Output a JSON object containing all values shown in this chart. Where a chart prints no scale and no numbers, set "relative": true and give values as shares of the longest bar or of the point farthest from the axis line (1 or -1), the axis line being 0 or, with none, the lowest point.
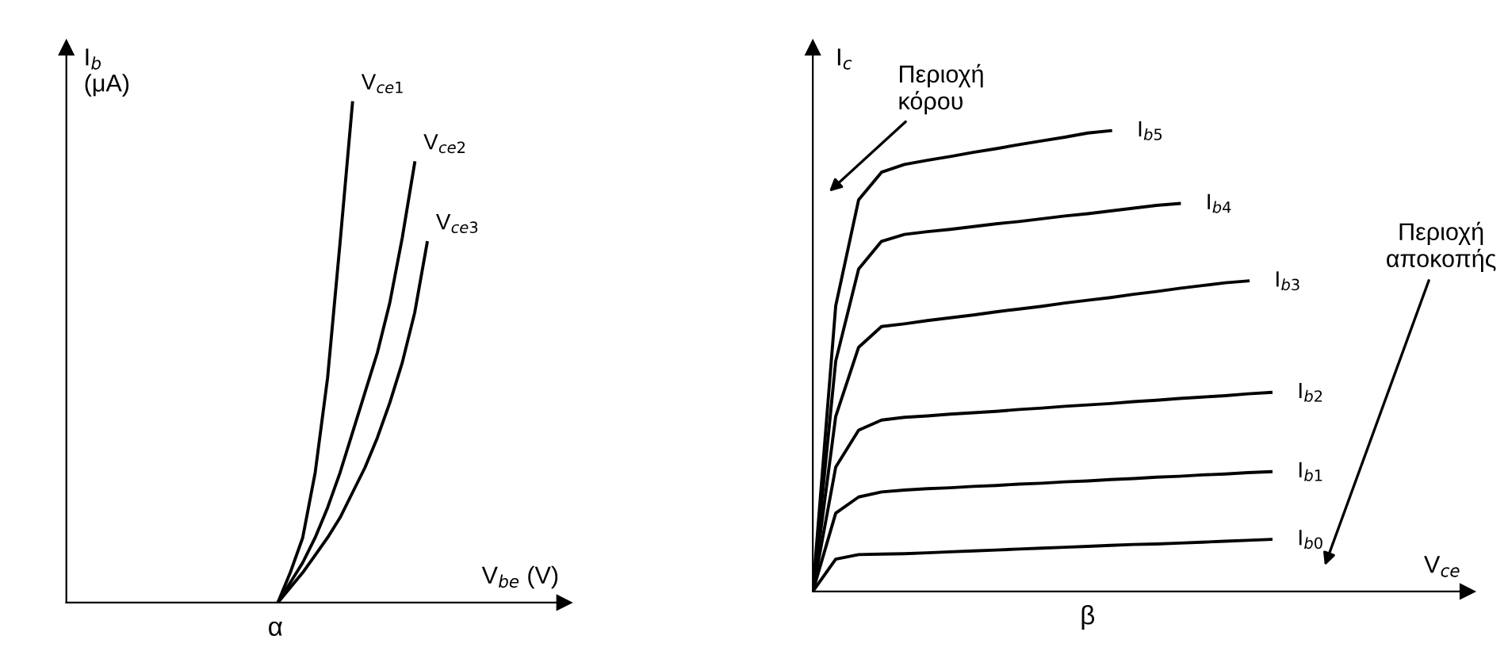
{
  "chart_data": [
    {
      "type": "line",
      "relative": true,
      "title": "α",
      "xlabel": "V$_{be}$ (V)",
      "ylabel": "I$_{b}$\n(μA)",
      "categories": [
        null,
        null,
        null,
        null,
        null,
        null,
        null,
        null,
        null,
        null,
        null,
        null,
        null
      ],
      "series": [
        {
          "name": "V$_{ce1}$",
          "color": "#000000",
          "values": [
            0,
            0.06,
            0.13,
            0.26,
            0.45,
            0.72,
            1.0,
            null,
            null,
            null,
            null,
            null,
            null
          ]
        },
        {
          "name": "V$_{ce2}$",
          "color": "#000000",
          "values": [
            0,
            0.04,
            0.08,
            0.13,
            0.19,
            0.26,
            0.34,
            0.42,
            0.5,
            0.6,
            0.73,
            0.88,
            null
          ]
        },
        {
          "name": "V$_{ce3}$",
          "color": "#000000",
          "values": [
            0,
            0.03,
            0.06,
            0.095,
            0.13,
            0.17,
            0.22,
            0.27,
            0.33,
            0.4,
            0.48,
            0.58,
            0.72
          ]
        }
      ]
    },
    {
      "type": "line",
      "relative": true,
      "title": "β",
      "xlabel": "V$_{ce}$",
      "ylabel": "I$_{c}$",
      "categories": [
        null,
        null,
        null,
        null,
        null,
        null,
        null,
        null,
        null,
        null,
        null,
        null,
        null,
        null,
        null,
        null,
        null,
        null,
        null,
        null,
        null
      ],
      "series": [
        {
          "name": "I$_{b5}$",
          "color": "#000000",
          "values": [
            0,
            0.62,
            0.85,
            0.91,
            0.927,
            0.936,
            0.944,
            0.953,
            0.961,
            0.97,
            0.978,
            0.986,
            0.995,
            1.0,
            null,
            null,
            null,
            null,
            null,
            null,
            null
          ]
        },
        {
          "name": "I$_{b4}$",
          "color": "#000000",
          "values": [
            0,
            0.5,
            0.7,
            0.76,
            0.775,
            0.781,
            0.786,
            0.792,
            0.798,
            0.803,
            0.809,
            0.815,
            0.82,
            0.826,
            0.832,
            0.838,
            0.842,
            null,
            null,
            null,
            null
          ]
        },
        {
          "name": "I$_{b3}$",
          "color": "#000000",
          "values": [
            0,
            0.38,
            0.53,
            0.575,
            0.581,
            0.588,
            0.594,
            0.6,
            0.607,
            0.613,
            0.619,
            0.626,
            0.632,
            0.638,
            0.645,
            0.651,
            0.658,
            0.664,
            0.67,
            0.674,
            null
          ]
        },
        {
          "name": "I$_{b2}$",
          "color": "#000000",
          "values": [
            0,
            0.27,
            0.35,
            0.372,
            0.378,
            0.381,
            0.385,
            0.388,
            0.391,
            0.395,
            0.398,
            0.402,
            0.405,
            0.408,
            0.412,
            0.415,
            0.419,
            0.422,
            0.425,
            0.429,
            0.432
          ]
        },
        {
          "name": "I$_{b1}$",
          "color": "#000000",
          "values": [
            0,
            0.17,
            0.205,
            0.216,
            0.22,
            0.223,
            0.225,
            0.228,
            0.23,
            0.233,
            0.235,
            0.238,
            0.24,
            0.243,
            0.245,
            0.248,
            0.25,
            0.253,
            0.255,
            0.258,
            0.26
          ]
        },
        {
          "name": "I$_{b0}$",
          "color": "#000000",
          "values": [
            0,
            0.07,
            0.08,
            0.081,
            0.082,
            0.084,
            0.086,
            0.088,
            0.09,
            0.092,
            0.094,
            0.096,
            0.098,
            0.1,
            0.102,
            0.103,
            0.105,
            0.107,
            0.109,
            0.111,
            0.113
          ]
        }
      ],
      "annotations": [
        "Περιοχή\nκόρου",
        "Περιοχή\nαποκοπής"
      ]
    }
  ]
}
